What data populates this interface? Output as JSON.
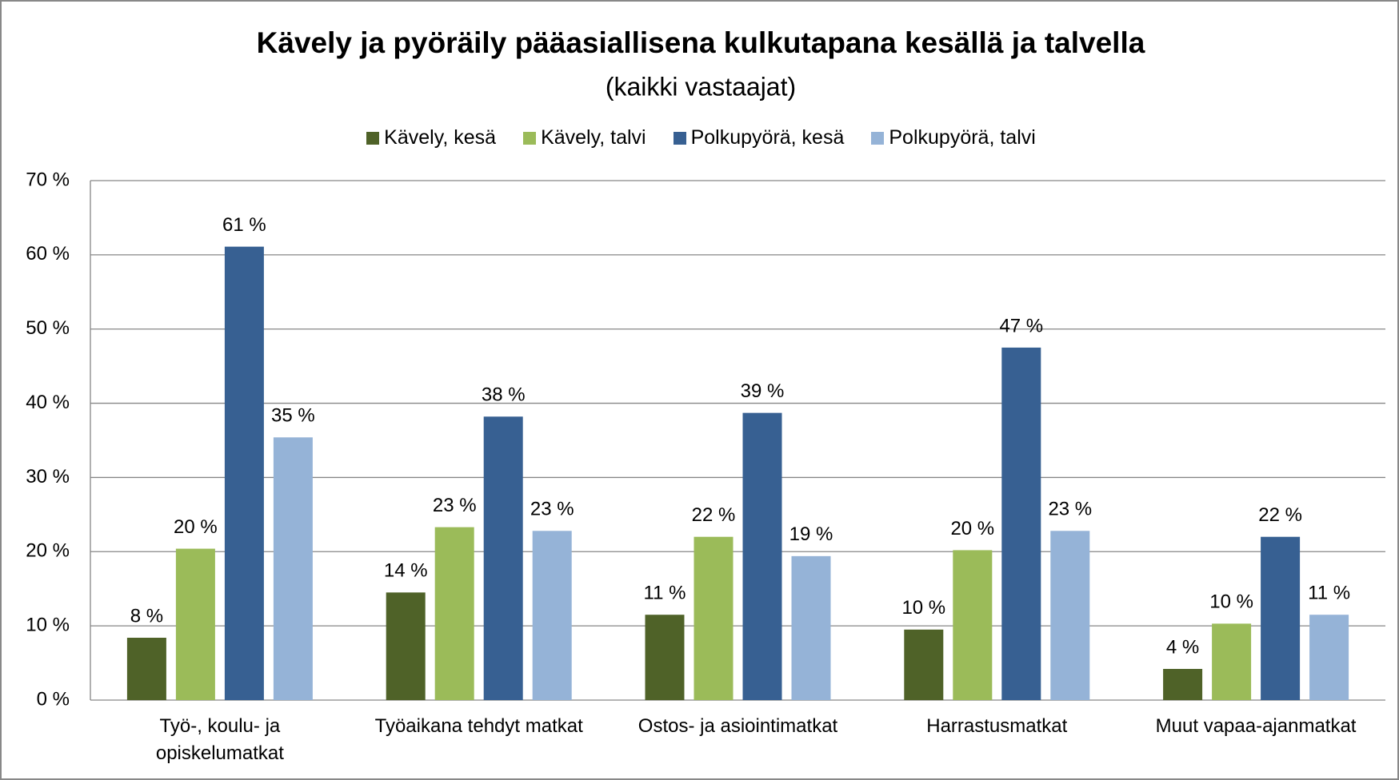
{
  "chart_data": {
    "type": "bar",
    "title": "Kävely ja pyöräily pääasiallisena kulkutapana  kesällä ja talvella",
    "subtitle": "(kaikki vastaajat)",
    "categories": [
      "Työ-, koulu- ja opiskelumatkat",
      "Työaikana tehdyt matkat",
      "Ostos- ja asiointimatkat",
      "Harrastusmatkat",
      "Muut vapaa-ajanmatkat"
    ],
    "series": [
      {
        "name": "Kävely, kesä",
        "color": "#4f6228",
        "values": [
          8.4,
          14.5,
          11.5,
          9.5,
          4.2
        ],
        "value_labels": [
          "8 %",
          "14 %",
          "11 %",
          "10 %",
          "4 %"
        ]
      },
      {
        "name": "Kävely, talvi",
        "color": "#9bbb59",
        "values": [
          20.4,
          23.3,
          22.0,
          20.2,
          10.3
        ],
        "value_labels": [
          "20 %",
          "23 %",
          "22 %",
          "20 %",
          "10 %"
        ]
      },
      {
        "name": "Polkupyörä, kesä",
        "color": "#376092",
        "values": [
          61.1,
          38.2,
          38.7,
          47.5,
          22.0
        ],
        "value_labels": [
          "61 %",
          "38 %",
          "39 %",
          "47 %",
          "22 %"
        ]
      },
      {
        "name": "Polkupyörä, talvi",
        "color": "#95b3d7",
        "values": [
          35.4,
          22.8,
          19.4,
          22.8,
          11.5
        ],
        "value_labels": [
          "35 %",
          "23 %",
          "19 %",
          "23 %",
          "11 %"
        ]
      }
    ],
    "ylim": [
      0,
      70
    ],
    "yticks": [
      {
        "value": 0,
        "label": "0 %"
      },
      {
        "value": 10,
        "label": "10 %"
      },
      {
        "value": 20,
        "label": "20 %"
      },
      {
        "value": 30,
        "label": "30 %"
      },
      {
        "value": 40,
        "label": "40 %"
      },
      {
        "value": 50,
        "label": "50 %"
      },
      {
        "value": 60,
        "label": "60 %"
      },
      {
        "value": 70,
        "label": "70 %"
      }
    ],
    "grid": true,
    "legend": "top"
  }
}
